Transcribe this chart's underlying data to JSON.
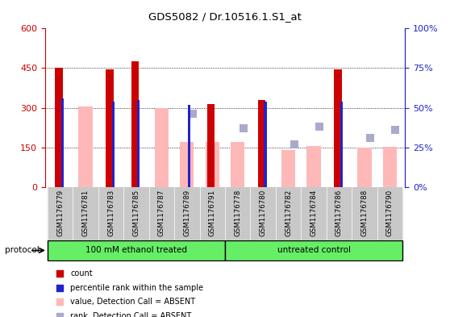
{
  "title": "GDS5082 / Dr.10516.1.S1_at",
  "samples": [
    "GSM1176779",
    "GSM1176781",
    "GSM1176783",
    "GSM1176785",
    "GSM1176787",
    "GSM1176789",
    "GSM1176791",
    "GSM1176778",
    "GSM1176780",
    "GSM1176782",
    "GSM1176784",
    "GSM1176786",
    "GSM1176788",
    "GSM1176790"
  ],
  "count_values": [
    450,
    0,
    445,
    475,
    0,
    0,
    315,
    0,
    330,
    0,
    0,
    445,
    0,
    0
  ],
  "percentile_values": [
    56,
    0,
    54,
    55,
    0,
    52,
    0,
    0,
    54,
    0,
    0,
    54,
    0,
    0
  ],
  "absent_value": [
    0,
    305,
    0,
    0,
    300,
    170,
    170,
    170,
    0,
    140,
    155,
    0,
    150,
    152
  ],
  "absent_rank_pct": [
    0,
    0,
    0,
    0,
    0,
    46,
    0,
    37,
    0,
    27,
    38,
    0,
    31,
    36
  ],
  "protocol_groups": [
    {
      "label": "100 mM ethanol treated",
      "count": 7
    },
    {
      "label": "untreated control",
      "count": 7
    }
  ],
  "ylim_left": [
    0,
    600
  ],
  "ylim_right": [
    0,
    100
  ],
  "yticks_left": [
    0,
    150,
    300,
    450,
    600
  ],
  "yticks_right": [
    0,
    25,
    50,
    75,
    100
  ],
  "ytick_labels_left": [
    "0",
    "150",
    "300",
    "450",
    "600"
  ],
  "ytick_labels_right": [
    "0%",
    "25%",
    "50%",
    "75%",
    "100%"
  ],
  "color_count": "#CC0000",
  "color_percentile": "#2222CC",
  "color_absent_value": "#FFB8B8",
  "color_absent_rank": "#AAAACC",
  "color_protocol_bg": "#66EE66",
  "color_axis_left": "#CC0000",
  "color_axis_right": "#2222CC",
  "color_xtick_bg": "#C8C8C8",
  "protocol_label": "protocol",
  "legend_items": [
    {
      "color": "#CC0000",
      "label": "count"
    },
    {
      "color": "#2222CC",
      "label": "percentile rank within the sample"
    },
    {
      "color": "#FFB8B8",
      "label": "value, Detection Call = ABSENT"
    },
    {
      "color": "#AAAACC",
      "label": "rank, Detection Call = ABSENT"
    }
  ]
}
